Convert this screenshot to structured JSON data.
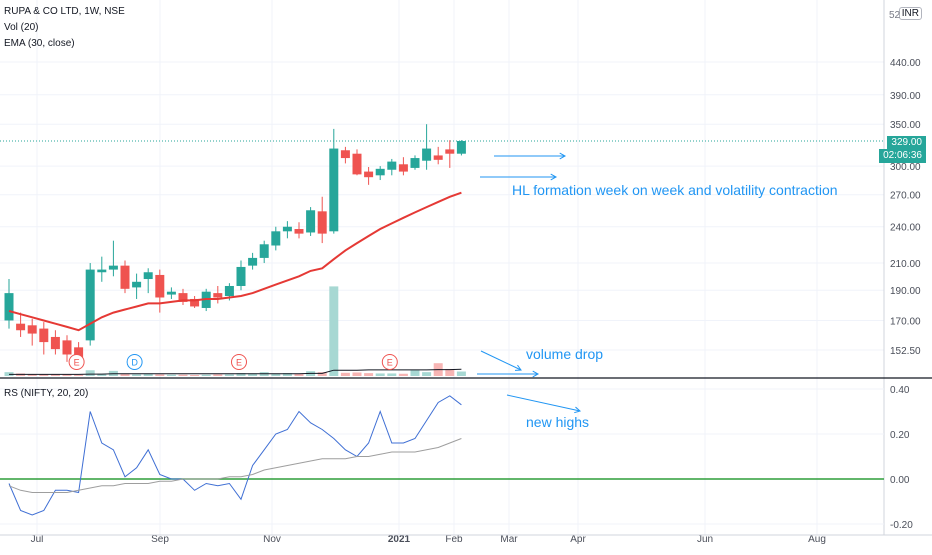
{
  "header": {
    "symbol_line": "RUPA & CO LTD, 1W, NSE",
    "vol_line": "Vol (20)",
    "ema_line": "EMA (30, close)",
    "currency_badge": "INR",
    "partial_top_label": "52"
  },
  "current_price": {
    "value_label": "329.00",
    "countdown_label": "02:06:36",
    "value": 329
  },
  "rs_indicator": {
    "label": "RS (NIFTY, 20, 20)"
  },
  "annotations": {
    "hl_formation": "HL formation week on week and volatility contraction",
    "volume_drop": "volume drop",
    "new_highs": "new highs"
  },
  "colors": {
    "up": "#26a69a",
    "down": "#ef5350",
    "ema": "#e53935",
    "rs_line": "#3f6fd4",
    "rs_ma": "#9e9e9e",
    "zero_line": "#2e9e3a",
    "annotation": "#2196f3"
  },
  "chart_data": [
    {
      "type": "candlestick",
      "name": "price",
      "y_scale": "log",
      "y_ticks": [
        152.5,
        170,
        190,
        210,
        240,
        270,
        300,
        350,
        390,
        440
      ],
      "y_tick_labels": [
        "152.50",
        "170.00",
        "190.00",
        "210.00",
        "240.00",
        "270.00",
        "300.00",
        "350.00",
        "390.00",
        "440.00"
      ],
      "x_tick_labels": [
        "Jul",
        "Sep",
        "Nov",
        "2021",
        "Feb",
        "Mar",
        "Apr",
        "Jun",
        "Aug"
      ],
      "candles": [
        {
          "o": 170,
          "h": 198,
          "l": 165,
          "c": 188
        },
        {
          "o": 168,
          "h": 175,
          "l": 160,
          "c": 164
        },
        {
          "o": 167,
          "h": 171,
          "l": 155,
          "c": 162
        },
        {
          "o": 165,
          "h": 169,
          "l": 150,
          "c": 157
        },
        {
          "o": 160,
          "h": 164,
          "l": 150,
          "c": 153
        },
        {
          "o": 158,
          "h": 161,
          "l": 146,
          "c": 150
        },
        {
          "o": 154,
          "h": 157,
          "l": 146,
          "c": 148
        },
        {
          "o": 158,
          "h": 210,
          "l": 155,
          "c": 205
        },
        {
          "o": 203,
          "h": 215,
          "l": 196,
          "c": 205
        },
        {
          "o": 205,
          "h": 228,
          "l": 200,
          "c": 208
        },
        {
          "o": 208,
          "h": 212,
          "l": 188,
          "c": 191
        },
        {
          "o": 192,
          "h": 202,
          "l": 184,
          "c": 196
        },
        {
          "o": 198,
          "h": 206,
          "l": 188,
          "c": 203
        },
        {
          "o": 201,
          "h": 205,
          "l": 175,
          "c": 185
        },
        {
          "o": 187,
          "h": 192,
          "l": 184,
          "c": 189
        },
        {
          "o": 188,
          "h": 191,
          "l": 180,
          "c": 182
        },
        {
          "o": 184,
          "h": 186,
          "l": 178,
          "c": 179
        },
        {
          "o": 178,
          "h": 191,
          "l": 176,
          "c": 189
        },
        {
          "o": 188,
          "h": 193,
          "l": 181,
          "c": 185
        },
        {
          "o": 186,
          "h": 195,
          "l": 183,
          "c": 193
        },
        {
          "o": 193,
          "h": 212,
          "l": 190,
          "c": 207
        },
        {
          "o": 208,
          "h": 218,
          "l": 205,
          "c": 214
        },
        {
          "o": 214,
          "h": 228,
          "l": 210,
          "c": 225
        },
        {
          "o": 224,
          "h": 240,
          "l": 220,
          "c": 236
        },
        {
          "o": 236,
          "h": 245,
          "l": 230,
          "c": 240
        },
        {
          "o": 238,
          "h": 244,
          "l": 230,
          "c": 234
        },
        {
          "o": 235,
          "h": 258,
          "l": 232,
          "c": 255
        },
        {
          "o": 254,
          "h": 268,
          "l": 226,
          "c": 234
        },
        {
          "o": 236,
          "h": 344,
          "l": 234,
          "c": 320
        },
        {
          "o": 318,
          "h": 322,
          "l": 303,
          "c": 309
        },
        {
          "o": 314,
          "h": 319,
          "l": 290,
          "c": 291
        },
        {
          "o": 294,
          "h": 299,
          "l": 280,
          "c": 288
        },
        {
          "o": 290,
          "h": 300,
          "l": 285,
          "c": 297
        },
        {
          "o": 296,
          "h": 308,
          "l": 290,
          "c": 305
        },
        {
          "o": 302,
          "h": 310,
          "l": 290,
          "c": 294
        },
        {
          "o": 298,
          "h": 312,
          "l": 296,
          "c": 309
        },
        {
          "o": 306,
          "h": 350,
          "l": 296,
          "c": 320
        },
        {
          "o": 312,
          "h": 322,
          "l": 302,
          "c": 307
        },
        {
          "o": 319,
          "h": 330,
          "l": 298,
          "c": 314
        },
        {
          "o": 314,
          "h": 330,
          "l": 312,
          "c": 329
        }
      ],
      "ema": [
        176,
        174,
        172,
        170,
        168,
        166,
        164,
        168,
        172,
        175,
        177,
        179,
        181,
        181,
        182,
        183,
        183,
        184,
        184,
        185,
        186,
        188,
        191,
        194,
        197,
        200,
        204,
        206,
        213,
        220,
        226,
        232,
        238,
        243,
        248,
        253,
        258,
        263,
        268,
        272
      ],
      "volume": [
        12,
        8,
        6,
        6,
        5,
        5,
        4,
        18,
        7,
        16,
        6,
        5,
        7,
        5,
        4,
        4,
        3,
        4,
        5,
        5,
        9,
        8,
        12,
        7,
        9,
        7,
        15,
        12,
        280,
        10,
        11,
        9,
        8,
        8,
        7,
        18,
        12,
        40,
        22,
        14
      ],
      "volume_ma": [
        5,
        5,
        5,
        5,
        5,
        5,
        5,
        6,
        6,
        7,
        7,
        7,
        7,
        7,
        7,
        7,
        7,
        7,
        7,
        7,
        7,
        7,
        7,
        7,
        7,
        7,
        8,
        8,
        18,
        18,
        18,
        19,
        19,
        19,
        19,
        19,
        19,
        20,
        20,
        21
      ],
      "event_markers": [
        {
          "index": 6,
          "label": "E"
        },
        {
          "index": 11,
          "label": "D"
        },
        {
          "index": 20,
          "label": "E"
        },
        {
          "index": 33,
          "label": "E"
        }
      ]
    },
    {
      "type": "line",
      "name": "RS (NIFTY, 20, 20)",
      "y_ticks": [
        -0.2,
        0,
        0.2,
        0.4
      ],
      "y_tick_labels": [
        "-0.20",
        "0.00",
        "0.20",
        "0.40"
      ],
      "series": [
        {
          "name": "RS",
          "values": [
            -0.02,
            -0.14,
            -0.16,
            -0.14,
            -0.05,
            -0.05,
            -0.06,
            0.3,
            0.16,
            0.13,
            0.01,
            0.05,
            0.13,
            0.02,
            0.0,
            0.0,
            -0.05,
            -0.02,
            -0.03,
            -0.02,
            -0.09,
            0.06,
            0.13,
            0.2,
            0.22,
            0.3,
            0.25,
            0.22,
            0.18,
            0.13,
            0.1,
            0.16,
            0.3,
            0.16,
            0.16,
            0.18,
            0.26,
            0.34,
            0.37,
            0.33
          ]
        },
        {
          "values": [
            -0.03,
            -0.05,
            -0.06,
            -0.06,
            -0.06,
            -0.06,
            -0.05,
            -0.04,
            -0.03,
            -0.03,
            -0.02,
            -0.02,
            -0.02,
            -0.01,
            -0.01,
            0.0,
            0.0,
            0.0,
            0.0,
            0.01,
            0.01,
            0.02,
            0.04,
            0.05,
            0.06,
            0.07,
            0.08,
            0.09,
            0.09,
            0.09,
            0.1,
            0.1,
            0.11,
            0.12,
            0.12,
            0.12,
            0.13,
            0.14,
            0.16,
            0.18
          ]
        }
      ],
      "reference_line": 0
    }
  ]
}
